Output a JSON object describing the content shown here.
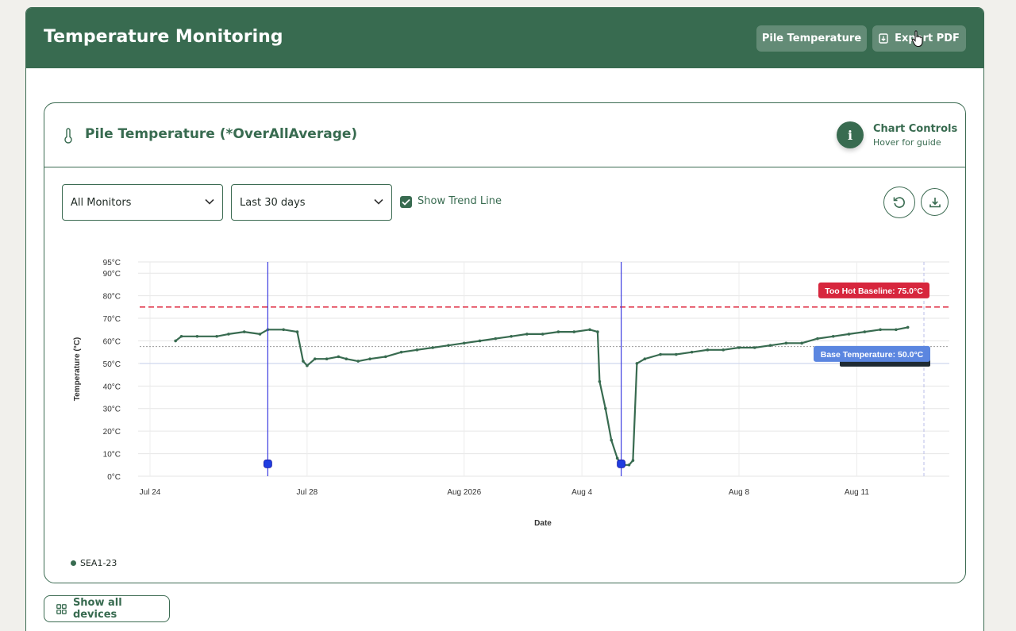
{
  "header": {
    "title": "Temperature Monitoring",
    "pile_temperature_label": "Pile Temperature",
    "export_pdf_label": "Export PDF"
  },
  "card": {
    "title": "Pile Temperature (*OverAllAverage)",
    "controls_title": "Chart Controls",
    "controls_subtitle": "Hover for guide",
    "info_glyph": "i"
  },
  "filters": {
    "monitor_value": "All Monitors",
    "range_value": "Last 30 days",
    "trend_label": "Show Trend Line",
    "trend_checked": true
  },
  "footer": {
    "show_all_label": "Show all devices"
  },
  "colors": {
    "brand": "#386b50",
    "hot_line": "#e03a4e",
    "hot_label_bg": "#d7263d",
    "base_label_bg": "#5b86e0",
    "marker": "#1f3de0"
  },
  "icons": [
    "thermometer-icon",
    "export-pdf-icon",
    "info-icon",
    "chevron-down-icon",
    "checkmark-icon",
    "reset-icon",
    "download-icon",
    "grid-icon"
  ],
  "chart_data": {
    "type": "line",
    "xlabel": "Date",
    "ylabel": "Temperature (°C)",
    "x_range": [
      "2026-07-24",
      "2026-08-13"
    ],
    "y_range": [
      0,
      95
    ],
    "yticks": [
      "0°C",
      "10°C",
      "20°C",
      "30°C",
      "40°C",
      "50°C",
      "60°C",
      "70°C",
      "80°C",
      "90°C",
      "95°C"
    ],
    "xticks": [
      {
        "date": "2026-07-24",
        "label": "Jul 24"
      },
      {
        "date": "2026-07-28",
        "label": "Jul 28"
      },
      {
        "date": "2026-08-01",
        "label": "Aug 2026"
      },
      {
        "date": "2026-08-04",
        "label": "Aug 4"
      },
      {
        "date": "2026-08-08",
        "label": "Aug 8"
      },
      {
        "date": "2026-08-11",
        "label": "Aug 11"
      }
    ],
    "thresholds": [
      {
        "label": "Too Hot Baseline: 75.0°C",
        "value": 75.0,
        "style": "dashed"
      },
      {
        "label": "Base Temperature: 50.0°C",
        "value": 50.0,
        "style": "solid"
      }
    ],
    "markers": [
      {
        "date": "2026-07-27.0",
        "value": 5.5
      },
      {
        "date": "2026-08-05.0",
        "value": 5.5
      }
    ],
    "series": [
      {
        "name": "SEA1-23",
        "points": [
          [
            "2026-07-24.65",
            60
          ],
          [
            "2026-07-24.8",
            62
          ],
          [
            "2026-07-25.2",
            62
          ],
          [
            "2026-07-25.7",
            62
          ],
          [
            "2026-07-26.0",
            63
          ],
          [
            "2026-07-26.4",
            64
          ],
          [
            "2026-07-26.8",
            63
          ],
          [
            "2026-07-27.0",
            65
          ],
          [
            "2026-07-27.4",
            65
          ],
          [
            "2026-07-27.75",
            64
          ],
          [
            "2026-07-27.9",
            51
          ],
          [
            "2026-07-28.0",
            49
          ],
          [
            "2026-07-28.2",
            52
          ],
          [
            "2026-07-28.5",
            52
          ],
          [
            "2026-07-28.8",
            53
          ],
          [
            "2026-07-29.0",
            52
          ],
          [
            "2026-07-29.3",
            51
          ],
          [
            "2026-07-29.6",
            52
          ],
          [
            "2026-07-30.0",
            53
          ],
          [
            "2026-07-30.4",
            55
          ],
          [
            "2026-07-30.8",
            56
          ],
          [
            "2026-07-31.2",
            57
          ],
          [
            "2026-07-31.6",
            58
          ],
          [
            "2026-08-01.0",
            59
          ],
          [
            "2026-08-01.4",
            60
          ],
          [
            "2026-08-01.8",
            61
          ],
          [
            "2026-08-02.2",
            62
          ],
          [
            "2026-08-02.6",
            63
          ],
          [
            "2026-08-03.0",
            63
          ],
          [
            "2026-08-03.4",
            64
          ],
          [
            "2026-08-03.8",
            64
          ],
          [
            "2026-08-04.2",
            65
          ],
          [
            "2026-08-04.4",
            64
          ],
          [
            "2026-08-04.45",
            42
          ],
          [
            "2026-08-04.6",
            30
          ],
          [
            "2026-08-04.75",
            16
          ],
          [
            "2026-08-04.9",
            8
          ],
          [
            "2026-08-05.0",
            5
          ],
          [
            "2026-08-05.2",
            5
          ],
          [
            "2026-08-05.3",
            7
          ],
          [
            "2026-08-05.4",
            50
          ],
          [
            "2026-08-05.6",
            52
          ],
          [
            "2026-08-06.0",
            54
          ],
          [
            "2026-08-06.4",
            54
          ],
          [
            "2026-08-06.8",
            55
          ],
          [
            "2026-08-07.2",
            56
          ],
          [
            "2026-08-07.6",
            56
          ],
          [
            "2026-08-08.0",
            57
          ],
          [
            "2026-08-08.4",
            57
          ],
          [
            "2026-08-08.8",
            58
          ],
          [
            "2026-08-09.2",
            59
          ],
          [
            "2026-08-09.6",
            59
          ],
          [
            "2026-08-10.0",
            61
          ],
          [
            "2026-08-10.4",
            62
          ],
          [
            "2026-08-10.8",
            63
          ],
          [
            "2026-08-11.2",
            64
          ],
          [
            "2026-08-11.6",
            65
          ],
          [
            "2026-08-12.0",
            65
          ],
          [
            "2026-08-12.3",
            66
          ]
        ]
      }
    ]
  }
}
